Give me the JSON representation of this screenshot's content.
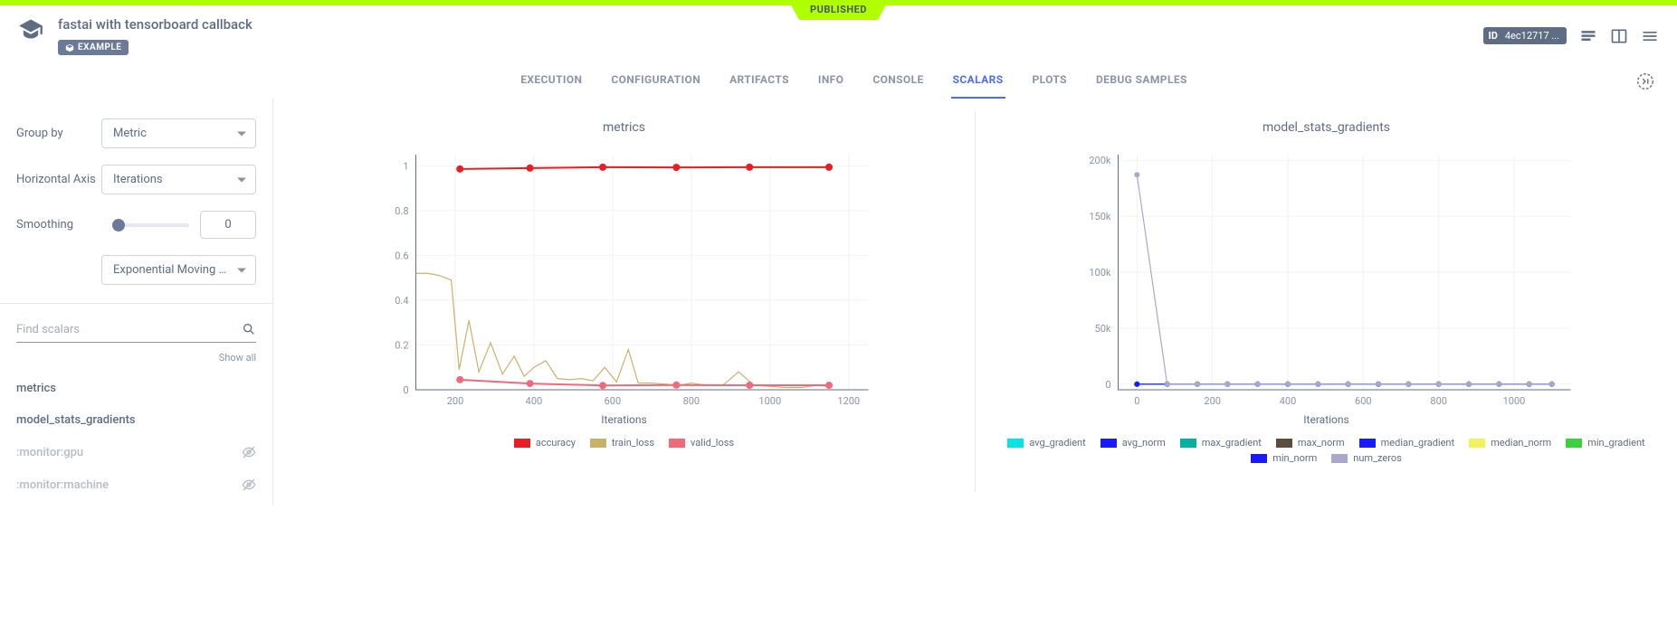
{
  "banner": {
    "status": "PUBLISHED"
  },
  "header": {
    "title": "fastai with tensorboard callback",
    "badge": "EXAMPLE",
    "id_label": "ID",
    "id_value": "4ec12717 ..."
  },
  "tabs": [
    {
      "label": "EXECUTION",
      "active": false
    },
    {
      "label": "CONFIGURATION",
      "active": false
    },
    {
      "label": "ARTIFACTS",
      "active": false
    },
    {
      "label": "INFO",
      "active": false
    },
    {
      "label": "CONSOLE",
      "active": false
    },
    {
      "label": "SCALARS",
      "active": true
    },
    {
      "label": "PLOTS",
      "active": false
    },
    {
      "label": "DEBUG SAMPLES",
      "active": false
    }
  ],
  "controls": {
    "group_by_label": "Group by",
    "group_by_value": "Metric",
    "haxis_label": "Horizontal Axis",
    "haxis_value": "Iterations",
    "smoothing_label": "Smoothing",
    "smoothing_value": "0",
    "smoothing_algo": "Exponential Moving Ave..."
  },
  "search": {
    "placeholder": "Find scalars",
    "show_all": "Show all"
  },
  "scalars": [
    {
      "name": "metrics",
      "muted": false,
      "hidden_icon": false
    },
    {
      "name": "model_stats_gradients",
      "muted": false,
      "hidden_icon": false
    },
    {
      "name": ":monitor:gpu",
      "muted": true,
      "hidden_icon": true
    },
    {
      "name": ":monitor:machine",
      "muted": true,
      "hidden_icon": true
    }
  ],
  "chart1": {
    "type": "line",
    "title": "metrics",
    "xlabel": "Iterations",
    "background_color": "#ffffff",
    "grid_color": "#f0f2f5",
    "axis_color": "#5e6c84",
    "tick_color": "#8a94a6",
    "xlim": [
      100,
      1250
    ],
    "ylim": [
      0,
      1.05
    ],
    "xticks": [
      200,
      400,
      600,
      800,
      1000,
      1200
    ],
    "yticks": [
      0,
      0.2,
      0.4,
      0.6,
      0.8,
      1
    ],
    "series": [
      {
        "name": "accuracy",
        "color": "#ec1c24",
        "line_width": 2,
        "marker": "circle",
        "marker_size": 4,
        "x": [
          212,
          390,
          575,
          762,
          948,
          1150
        ],
        "y": [
          0.986,
          0.99,
          0.994,
          0.993,
          0.994,
          0.994
        ]
      },
      {
        "name": "train_loss",
        "color": "#c8b26a",
        "line_width": 1.2,
        "marker": "none",
        "x": [
          100,
          130,
          160,
          190,
          210,
          235,
          260,
          290,
          320,
          350,
          375,
          400,
          430,
          460,
          490,
          520,
          550,
          580,
          610,
          640,
          665,
          700,
          735,
          770,
          800,
          840,
          880,
          920,
          960,
          1000,
          1040,
          1080,
          1120,
          1150
        ],
        "y": [
          0.52,
          0.52,
          0.51,
          0.49,
          0.09,
          0.31,
          0.08,
          0.21,
          0.07,
          0.15,
          0.06,
          0.1,
          0.13,
          0.05,
          0.045,
          0.05,
          0.04,
          0.1,
          0.035,
          0.18,
          0.03,
          0.03,
          0.025,
          0.02,
          0.03,
          0.02,
          0.02,
          0.08,
          0.02,
          0.015,
          0.01,
          0.01,
          0.02,
          0.015
        ]
      },
      {
        "name": "valid_loss",
        "color": "#f16a7a",
        "line_width": 2,
        "marker": "circle",
        "marker_size": 4,
        "x": [
          212,
          390,
          575,
          762,
          948,
          1150
        ],
        "y": [
          0.045,
          0.028,
          0.019,
          0.021,
          0.02,
          0.02
        ]
      }
    ]
  },
  "chart2": {
    "type": "line",
    "title": "model_stats_gradients",
    "xlabel": "Iterations",
    "background_color": "#ffffff",
    "grid_color": "#f0f2f5",
    "axis_color": "#5e6c84",
    "tick_color": "#8a94a6",
    "xlim": [
      -50,
      1150
    ],
    "ylim": [
      -5000,
      205000
    ],
    "xticks": [
      0,
      200,
      400,
      600,
      800,
      1000
    ],
    "yticks": [
      0,
      50000,
      100000,
      150000,
      200000
    ],
    "ytick_labels": [
      "0",
      "50k",
      "100k",
      "150k",
      "200k"
    ],
    "series": [
      {
        "name": "avg_gradient",
        "color": "#00e5e5",
        "line_width": 1.2,
        "marker": "circle",
        "marker_size": 3,
        "x": [
          0,
          80,
          160,
          240,
          320,
          400,
          480,
          560,
          640,
          720,
          800,
          880,
          960,
          1040,
          1100
        ],
        "y": [
          0,
          0,
          0,
          0,
          0,
          0,
          0,
          0,
          0,
          0,
          0,
          0,
          0,
          0,
          0
        ]
      },
      {
        "name": "avg_norm",
        "color": "#1a1aff",
        "line_width": 1.2,
        "marker": "circle",
        "marker_size": 3,
        "x": [
          0,
          80,
          160,
          240,
          320,
          400,
          480,
          560,
          640,
          720,
          800,
          880,
          960,
          1040,
          1100
        ],
        "y": [
          0,
          0,
          0,
          0,
          0,
          0,
          0,
          0,
          0,
          0,
          0,
          0,
          0,
          0,
          0
        ]
      },
      {
        "name": "max_gradient",
        "color": "#00b3a0",
        "line_width": 1.2,
        "marker": "circle",
        "marker_size": 3,
        "x": [
          0,
          80,
          160,
          240,
          320,
          400,
          480,
          560,
          640,
          720,
          800,
          880,
          960,
          1040,
          1100
        ],
        "y": [
          0,
          0,
          0,
          0,
          0,
          0,
          0,
          0,
          0,
          0,
          0,
          0,
          0,
          0,
          0
        ]
      },
      {
        "name": "max_norm",
        "color": "#5c4d3c",
        "line_width": 1.2,
        "marker": "circle",
        "marker_size": 3,
        "x": [
          0,
          80,
          160,
          240,
          320,
          400,
          480,
          560,
          640,
          720,
          800,
          880,
          960,
          1040,
          1100
        ],
        "y": [
          0,
          0,
          0,
          0,
          0,
          0,
          0,
          0,
          0,
          0,
          0,
          0,
          0,
          0,
          0
        ]
      },
      {
        "name": "median_gradient",
        "color": "#1a1aff",
        "line_width": 1.2,
        "marker": "circle",
        "marker_size": 3,
        "x": [
          0,
          80,
          160,
          240,
          320,
          400,
          480,
          560,
          640,
          720,
          800,
          880,
          960,
          1040,
          1100
        ],
        "y": [
          0,
          0,
          0,
          0,
          0,
          0,
          0,
          0,
          0,
          0,
          0,
          0,
          0,
          0,
          0
        ]
      },
      {
        "name": "median_norm",
        "color": "#f2f25b",
        "line_width": 1.2,
        "marker": "circle",
        "marker_size": 3,
        "x": [
          0,
          80,
          160,
          240,
          320,
          400,
          480,
          560,
          640,
          720,
          800,
          880,
          960,
          1040,
          1100
        ],
        "y": [
          0,
          0,
          0,
          0,
          0,
          0,
          0,
          0,
          0,
          0,
          0,
          0,
          0,
          0,
          0
        ]
      },
      {
        "name": "min_gradient",
        "color": "#39d23c",
        "line_width": 1.2,
        "marker": "circle",
        "marker_size": 3,
        "x": [
          0,
          80,
          160,
          240,
          320,
          400,
          480,
          560,
          640,
          720,
          800,
          880,
          960,
          1040,
          1100
        ],
        "y": [
          0,
          0,
          0,
          0,
          0,
          0,
          0,
          0,
          0,
          0,
          0,
          0,
          0,
          0,
          0
        ]
      },
      {
        "name": "min_norm",
        "color": "#1a1aff",
        "line_width": 1.2,
        "marker": "circle",
        "marker_size": 3,
        "x": [
          0,
          80,
          160,
          240,
          320,
          400,
          480,
          560,
          640,
          720,
          800,
          880,
          960,
          1040,
          1100
        ],
        "y": [
          0,
          0,
          0,
          0,
          0,
          0,
          0,
          0,
          0,
          0,
          0,
          0,
          0,
          0,
          0
        ]
      },
      {
        "name": "num_zeros",
        "color": "#a9a8cc",
        "line_width": 1.2,
        "marker": "circle",
        "marker_size": 3,
        "x": [
          0,
          80,
          160,
          240,
          320,
          400,
          480,
          560,
          640,
          720,
          800,
          880,
          960,
          1040,
          1100
        ],
        "y": [
          187000,
          0,
          0,
          0,
          0,
          0,
          0,
          0,
          0,
          0,
          0,
          0,
          0,
          0,
          0
        ]
      }
    ]
  }
}
